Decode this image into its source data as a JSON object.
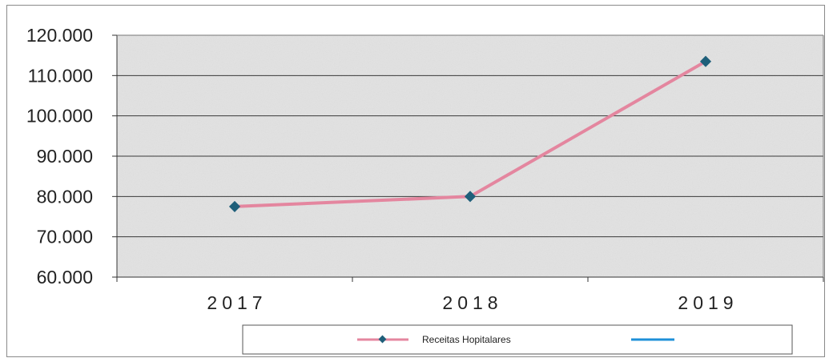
{
  "chart_data": {
    "type": "line",
    "categories": [
      "2017",
      "2018",
      "2019"
    ],
    "series": [
      {
        "name": "Receitas Hopitalares",
        "values": [
          77500,
          80000,
          113500
        ],
        "color": "#e4869f",
        "marker_color": "#1f5f7a"
      }
    ],
    "legend_second_entry_color": "#1e90d8",
    "yticks": [
      "60.000",
      "70.000",
      "80.000",
      "90.000",
      "100.000",
      "110.000",
      "120.000"
    ],
    "ylim": [
      60000,
      120000
    ],
    "grid": true,
    "legend_position": "bottom",
    "plot_background": "#e2e2e2",
    "title": "",
    "xlabel": "",
    "ylabel": ""
  }
}
